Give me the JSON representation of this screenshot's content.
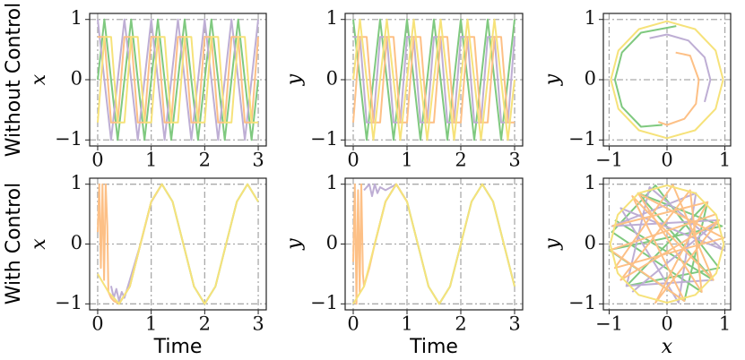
{
  "row_labels": [
    "Without Control",
    "With Control"
  ],
  "chart_data": [
    {
      "type": "line",
      "ylabel": "x",
      "xlim": [
        -0.15,
        3.15
      ],
      "ylim": [
        -1.1,
        1.1
      ],
      "xticks": [
        0,
        1,
        2,
        3
      ],
      "yticks": [
        {
          "value": -1,
          "label": "−1"
        },
        0,
        1
      ],
      "grid": true,
      "x": [
        0,
        0.125,
        0.25,
        0.375,
        0.5,
        0.625,
        0.75,
        0.875,
        1,
        1.125,
        1.25,
        1.375,
        1.5,
        1.625,
        1.75,
        1.875,
        2,
        2.125,
        2.25,
        2.375,
        2.5,
        2.625,
        2.75,
        2.875,
        3
      ],
      "series": [
        {
          "color": "#7fc97f",
          "values": [
            0,
            1,
            0,
            -1,
            0,
            1,
            0,
            -1,
            0,
            1,
            0,
            -1,
            0,
            1,
            0,
            -1,
            0,
            1,
            0,
            -1,
            0,
            1,
            0,
            -1,
            0
          ]
        },
        {
          "color": "#beaed4",
          "values": [
            1,
            0,
            -1,
            0,
            1,
            0,
            -1,
            0,
            1,
            0,
            -1,
            0,
            1,
            0,
            -1,
            0,
            1,
            0,
            -1,
            0,
            1,
            0,
            -1,
            0,
            1
          ]
        },
        {
          "color": "#fdc086",
          "values": [
            0.71,
            0.71,
            -0.71,
            -0.71,
            0.71,
            0.71,
            -0.71,
            -0.71,
            0.71,
            0.71,
            -0.71,
            -0.71,
            0.71,
            0.71,
            -0.71,
            -0.71,
            0.71,
            0.71,
            -0.71,
            -0.71,
            0.71,
            0.71,
            -0.71,
            -0.71,
            0.71
          ]
        },
        {
          "color": "#f6e27a",
          "values": [
            -0.71,
            0.71,
            0.71,
            -0.71,
            -0.71,
            0.71,
            0.71,
            -0.71,
            -0.71,
            0.71,
            0.71,
            -0.71,
            -0.71,
            0.71,
            0.71,
            -0.71,
            -0.71,
            0.71,
            0.71,
            -0.71,
            -0.71,
            0.71,
            0.71,
            -0.71,
            -0.71
          ]
        }
      ]
    },
    {
      "type": "line",
      "ylabel": "y",
      "xlim": [
        -0.15,
        3.15
      ],
      "ylim": [
        -1.1,
        1.1
      ],
      "xticks": [
        0,
        1,
        2,
        3
      ],
      "yticks": [
        {
          "value": -1,
          "label": "−1"
        },
        0,
        1
      ],
      "grid": true,
      "x": [
        0,
        0.125,
        0.25,
        0.375,
        0.5,
        0.625,
        0.75,
        0.875,
        1,
        1.125,
        1.25,
        1.375,
        1.5,
        1.625,
        1.75,
        1.875,
        2,
        2.125,
        2.25,
        2.375,
        2.5,
        2.625,
        2.75,
        2.875,
        3
      ],
      "series": [
        {
          "color": "#7fc97f",
          "values": [
            1,
            0,
            -1,
            0,
            1,
            0,
            -1,
            0,
            1,
            0,
            -1,
            0,
            1,
            0,
            -1,
            0,
            1,
            0,
            -1,
            0,
            1,
            0,
            -1,
            0,
            1
          ]
        },
        {
          "color": "#beaed4",
          "values": [
            0.71,
            0.71,
            -0.71,
            -0.71,
            0.71,
            0.71,
            -0.71,
            -0.71,
            0.71,
            0.71,
            -0.71,
            -0.71,
            0.71,
            0.71,
            -0.71,
            -0.71,
            0.71,
            0.71,
            -0.71,
            -0.71,
            0.71,
            0.71,
            -0.71,
            -0.71,
            0.71
          ]
        },
        {
          "color": "#fdc086",
          "values": [
            -0.71,
            0.71,
            0.71,
            -0.71,
            -0.71,
            0.71,
            0.71,
            -0.71,
            -0.71,
            0.71,
            0.71,
            -0.71,
            -0.71,
            0.71,
            0.71,
            -0.71,
            -0.71,
            0.71,
            0.71,
            -0.71,
            -0.71,
            0.71,
            0.71,
            -0.71,
            -0.71
          ]
        },
        {
          "color": "#f6e27a",
          "values": [
            0,
            1,
            0,
            -1,
            0,
            1,
            0,
            -1,
            0,
            1,
            0,
            -1,
            0,
            1,
            0,
            -1,
            0,
            1,
            0,
            -1,
            0,
            1,
            0,
            -1,
            0
          ]
        }
      ]
    },
    {
      "type": "phase",
      "ylabel": "y",
      "xlim": [
        -1.1,
        1.1
      ],
      "ylim": [
        -1.1,
        1.1
      ],
      "xticks": [
        {
          "value": -1,
          "label": "−1"
        },
        0,
        1
      ],
      "yticks": [
        {
          "value": -1,
          "label": "−1"
        },
        0,
        1
      ],
      "grid": true,
      "series": [
        {
          "color": "#7fc97f",
          "x": [
            0.16,
            -0.45,
            -0.78,
            -0.9,
            -0.78,
            -0.45,
            -0.08
          ],
          "values": [
            0.89,
            0.78,
            0.45,
            0,
            -0.45,
            -0.78,
            -0.75
          ]
        },
        {
          "color": "#beaed4",
          "x": [
            -0.3,
            0,
            0.37,
            0.65,
            0.75,
            0.65
          ],
          "values": [
            0.69,
            0.75,
            0.65,
            0.37,
            0,
            -0.37
          ]
        },
        {
          "color": "#fdc086",
          "x": [
            0.15,
            0.4,
            0.55,
            0.5,
            0.3,
            0,
            -0.15
          ],
          "values": [
            0.45,
            0.4,
            0,
            -0.4,
            -0.65,
            -0.75,
            -0.7
          ]
        },
        {
          "color": "#f6e27a",
          "x": [
            0.97,
            0.84,
            0.485,
            0,
            -0.485,
            -0.84,
            -0.97,
            -0.84,
            -0.485,
            0,
            0.485,
            0.84,
            0.97
          ],
          "values": [
            0,
            0.485,
            0.84,
            0.97,
            0.84,
            0.485,
            0,
            -0.485,
            -0.84,
            -0.97,
            -0.84,
            -0.485,
            0
          ]
        }
      ]
    },
    {
      "type": "line",
      "ylabel": "x",
      "xlabel": "Time",
      "xlim": [
        -0.15,
        3.15
      ],
      "ylim": [
        -1.1,
        1.1
      ],
      "xticks": [
        0,
        1,
        2,
        3
      ],
      "yticks": [
        {
          "value": -1,
          "label": "−1"
        },
        0,
        1
      ],
      "grid": true,
      "series": [
        {
          "color": "#7fc97f",
          "x": [
            0.3,
            0.4,
            0.6,
            0.8,
            1,
            1.2,
            1.4,
            1.6,
            1.8,
            2,
            2.2,
            2.4,
            2.6,
            2.8,
            3
          ],
          "values": [
            -0.9,
            -1,
            -0.71,
            0,
            0.71,
            1,
            0.71,
            0,
            -0.71,
            -1,
            -0.71,
            0,
            0.71,
            1,
            0.71
          ]
        },
        {
          "color": "#beaed4",
          "x": [
            0.25,
            0.3,
            0.35,
            0.4,
            0.45,
            0.5,
            0.6,
            0.8,
            1,
            1.2
          ],
          "values": [
            -0.7,
            -0.9,
            -0.75,
            -0.95,
            -0.8,
            -0.9,
            -0.6,
            0,
            0.7,
            1
          ]
        },
        {
          "color": "#fdc086",
          "x": [
            0,
            0.03,
            0.06,
            0.09,
            0.12,
            0.15,
            0.18,
            0.2,
            0.25,
            0.3,
            0.4,
            0.6,
            0.8,
            1,
            1.2
          ],
          "values": [
            0.2,
            1,
            -0.4,
            1,
            -0.6,
            1,
            0.3,
            -0.8,
            -0.9,
            -0.95,
            -1,
            -0.71,
            0,
            0.71,
            1
          ]
        },
        {
          "color": "#f6e27a",
          "x": [
            0,
            0.2,
            0.4,
            0.6,
            0.8,
            1,
            1.2,
            1.4,
            1.6,
            1.8,
            2,
            2.2,
            2.4,
            2.6,
            2.8,
            3
          ],
          "values": [
            -0.5,
            -0.8,
            -1,
            -0.71,
            0,
            0.71,
            1,
            0.71,
            0,
            -0.71,
            -1,
            -0.71,
            0,
            0.71,
            1,
            0.71
          ]
        }
      ]
    },
    {
      "type": "line",
      "ylabel": "y",
      "xlabel": "Time",
      "xlim": [
        -0.15,
        3.15
      ],
      "ylim": [
        -1.1,
        1.1
      ],
      "xticks": [
        0,
        1,
        2,
        3
      ],
      "yticks": [
        {
          "value": -1,
          "label": "−1"
        },
        0,
        1
      ],
      "grid": true,
      "series": [
        {
          "color": "#7fc97f",
          "x": [
            0.4,
            0.6,
            0.8,
            1,
            1.2,
            1.4,
            1.6,
            1.8,
            2,
            2.2,
            2.4,
            2.6,
            2.8,
            3
          ],
          "values": [
            0,
            0.71,
            1,
            0.71,
            0,
            -0.71,
            -1,
            -0.71,
            0,
            0.71,
            1,
            0.71,
            0,
            -0.71
          ]
        },
        {
          "color": "#beaed4",
          "x": [
            0.2,
            0.3,
            0.35,
            0.4,
            0.45,
            0.5,
            0.6,
            0.8,
            1
          ],
          "values": [
            0.9,
            1,
            0.8,
            1,
            0.85,
            0.95,
            0.9,
            1,
            0.71
          ]
        },
        {
          "color": "#fdc086",
          "x": [
            0,
            0.03,
            0.06,
            0.09,
            0.12,
            0.15,
            0.18,
            0.2,
            0.3,
            0.4,
            0.6,
            0.8,
            1
          ],
          "values": [
            -0.3,
            1,
            -1,
            0.9,
            -0.8,
            1,
            -0.5,
            -0.71,
            -0.4,
            0,
            0.71,
            1,
            0.71
          ]
        },
        {
          "color": "#f6e27a",
          "x": [
            0,
            0.2,
            0.4,
            0.6,
            0.8,
            1,
            1.2,
            1.4,
            1.6,
            1.8,
            2,
            2.2,
            2.4,
            2.6,
            2.8,
            3
          ],
          "values": [
            -1,
            -0.71,
            0,
            0.71,
            1,
            0.71,
            0,
            -0.71,
            -1,
            -0.71,
            0,
            0.71,
            1,
            0.71,
            0,
            -0.71
          ]
        }
      ]
    },
    {
      "type": "phase",
      "ylabel": "y",
      "xlabel": "x",
      "xlim": [
        -1.1,
        1.1
      ],
      "ylim": [
        -1.1,
        1.1
      ],
      "xticks": [
        {
          "value": -1,
          "label": "−1"
        },
        0,
        1
      ],
      "yticks": [
        {
          "value": -1,
          "label": "−1"
        },
        0,
        1
      ],
      "grid": true,
      "series": [
        {
          "color": "#7fc97f",
          "x": [
            -0.9,
            0.8,
            -0.5,
            0.95,
            -1,
            0.3,
            0.7,
            -0.7,
            0.9,
            -0.2,
            -0.95,
            0.6
          ],
          "values": [
            0.4,
            -0.6,
            0.85,
            0.3,
            -0.1,
            -0.95,
            0.7,
            -0.7,
            -0.4,
            0.98,
            0.2,
            -0.8
          ]
        },
        {
          "color": "#beaed4",
          "x": [
            -0.6,
            0.9,
            -0.95,
            0.5,
            0.2,
            -0.8,
            0.98,
            -0.3,
            -0.7,
            0.8
          ],
          "values": [
            -0.8,
            0.4,
            0.3,
            0.85,
            -0.98,
            0.6,
            -0.1,
            0.95,
            -0.7,
            -0.6
          ]
        },
        {
          "color": "#fdc086",
          "x": [
            -0.95,
            0.7,
            -0.2,
            0.9,
            -0.8,
            0.4,
            0.6,
            -0.5,
            0.98,
            -0.9,
            0.1,
            0.8,
            -0.6,
            0.3,
            -0.98,
            0.85
          ],
          "values": [
            0.3,
            0.7,
            -0.98,
            0.4,
            -0.6,
            0.9,
            -0.8,
            0.85,
            0.1,
            -0.4,
            0.99,
            -0.6,
            0.8,
            -0.95,
            -0.1,
            0.5
          ]
        },
        {
          "color": "#f6e27a",
          "x": [
            0.98,
            0.85,
            0.49,
            0,
            -0.49,
            -0.85,
            -0.98,
            -0.85,
            -0.49,
            0,
            0.49,
            0.85,
            0.98
          ],
          "values": [
            0,
            0.49,
            0.85,
            0.98,
            0.85,
            0.49,
            0,
            -0.49,
            -0.85,
            -0.98,
            -0.85,
            -0.49,
            0
          ]
        }
      ]
    }
  ]
}
